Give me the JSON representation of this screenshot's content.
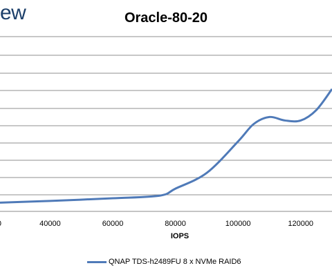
{
  "logo_text": "ew",
  "chart_data": {
    "type": "line",
    "title": "Oracle-80-20",
    "xlabel": "IOPS",
    "ylabel": "",
    "xlim": [
      24000,
      130000
    ],
    "x_ticks": [
      "40000",
      "60000",
      "80000",
      "100000",
      "120000"
    ],
    "x_tick_values": [
      40000,
      60000,
      80000,
      100000,
      120000
    ],
    "grid": true,
    "legend_position": "bottom",
    "series": [
      {
        "name": "QNAP TDS-h2489FU 8 x NVMe RAID6",
        "color": "#4f7ab8",
        "x": [
          24000,
          40000,
          60000,
          75000,
          80000,
          90000,
          100000,
          105000,
          110000,
          115000,
          120000,
          125000,
          130000
        ],
        "y": [
          0.05,
          0.06,
          0.075,
          0.09,
          0.13,
          0.22,
          0.4,
          0.5,
          0.54,
          0.52,
          0.52,
          0.58,
          0.7
        ]
      }
    ]
  }
}
